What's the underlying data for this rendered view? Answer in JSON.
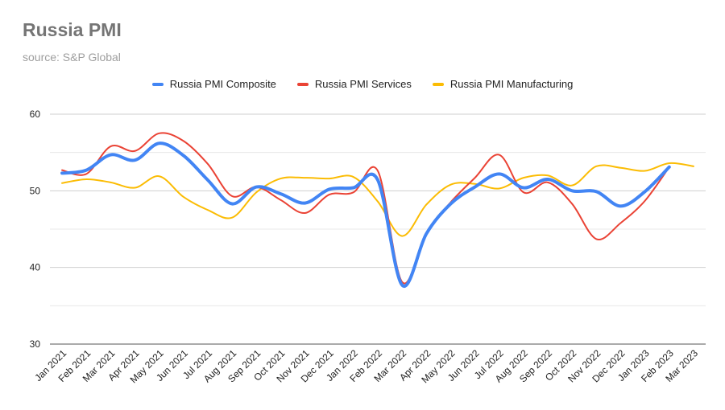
{
  "title": "Russia PMI",
  "subtitle": "source: S&P Global",
  "chart_data": {
    "type": "line",
    "categories": [
      "Jan 2021",
      "Feb 2021",
      "Mar 2021",
      "Apr 2021",
      "May 2021",
      "Jun 2021",
      "Jul 2021",
      "Aug 2021",
      "Sep 2021",
      "Oct 2021",
      "Nov 2021",
      "Dec 2021",
      "Jan 2022",
      "Feb 2022",
      "Mar 2022",
      "Apr 2022",
      "May 2022",
      "Jun 2022",
      "Jul 2022",
      "Aug 2022",
      "Sep 2022",
      "Oct 2022",
      "Nov 2022",
      "Dec 2022",
      "Jan 2023",
      "Feb 2023",
      "Mar 2023"
    ],
    "series": [
      {
        "name": "Russia PMI Composite",
        "color": "#4285f4",
        "values": [
          52.3,
          52.7,
          54.7,
          54.0,
          56.2,
          54.6,
          51.4,
          48.3,
          50.5,
          49.6,
          48.4,
          50.2,
          50.4,
          51.4,
          37.7,
          44.4,
          48.3,
          50.5,
          52.2,
          50.4,
          51.5,
          50.0,
          49.9,
          48.0,
          49.9,
          53.1,
          null
        ]
      },
      {
        "name": "Russia PMI Services",
        "color": "#ea4335",
        "values": [
          52.7,
          52.2,
          55.8,
          55.2,
          57.5,
          56.5,
          53.5,
          49.3,
          50.5,
          48.8,
          47.1,
          49.5,
          49.8,
          52.6,
          38.1,
          44.5,
          48.5,
          51.7,
          54.7,
          49.8,
          51.1,
          48.3,
          43.7,
          45.8,
          48.7,
          53.1,
          null
        ]
      },
      {
        "name": "Russia PMI Manufacturing",
        "color": "#fbbc04",
        "values": [
          51.0,
          51.5,
          51.1,
          50.4,
          51.9,
          49.2,
          47.5,
          46.5,
          49.8,
          51.6,
          51.7,
          51.6,
          51.8,
          48.6,
          44.1,
          48.2,
          50.8,
          50.9,
          50.3,
          51.7,
          52.0,
          50.7,
          53.2,
          53.0,
          52.6,
          53.6,
          53.2
        ]
      }
    ],
    "ylim": [
      30,
      60
    ],
    "yticks": [
      30,
      40,
      50,
      60
    ],
    "grid": true,
    "legend_position": "top"
  }
}
